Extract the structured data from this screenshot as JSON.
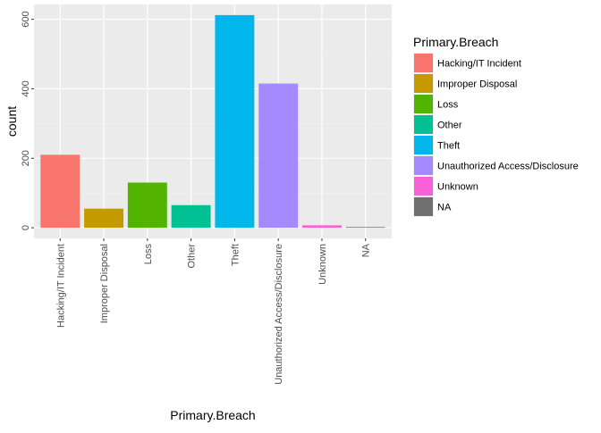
{
  "chart_data": {
    "type": "bar",
    "categories": [
      "Hacking/IT Incident",
      "Improper Disposal",
      "Loss",
      "Other",
      "Theft",
      "Unauthorized Access/Disclosure",
      "Unknown",
      "NA"
    ],
    "values": [
      210,
      55,
      130,
      65,
      612,
      415,
      7,
      2
    ],
    "colors": [
      "#F8766D",
      "#C49A00",
      "#53B400",
      "#00C094",
      "#00B6EB",
      "#A58AFF",
      "#FB61D7",
      "#707070"
    ],
    "xlabel": "Primary.Breach",
    "ylabel": "count",
    "yticks": [
      0,
      200,
      400,
      600
    ],
    "ylim": [
      -30.6,
      642.6
    ],
    "grid": true,
    "legend": {
      "title": "Primary.Breach",
      "position": "right",
      "entries": [
        "Hacking/IT Incident",
        "Improper Disposal",
        "Loss",
        "Other",
        "Theft",
        "Unauthorized Access/Disclosure",
        "Unknown",
        "NA"
      ]
    }
  }
}
